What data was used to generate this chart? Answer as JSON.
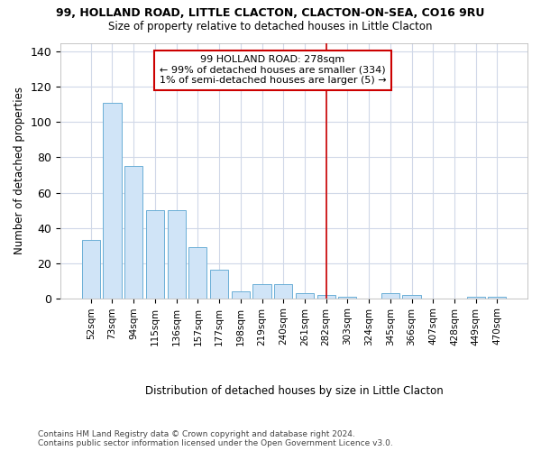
{
  "title1": "99, HOLLAND ROAD, LITTLE CLACTON, CLACTON-ON-SEA, CO16 9RU",
  "title2": "Size of property relative to detached houses in Little Clacton",
  "xlabel": "Distribution of detached houses by size in Little Clacton",
  "ylabel": "Number of detached properties",
  "categories": [
    "52sqm",
    "73sqm",
    "94sqm",
    "115sqm",
    "136sqm",
    "157sqm",
    "177sqm",
    "198sqm",
    "219sqm",
    "240sqm",
    "261sqm",
    "282sqm",
    "303sqm",
    "324sqm",
    "345sqm",
    "366sqm",
    "407sqm",
    "428sqm",
    "449sqm",
    "470sqm"
  ],
  "values": [
    33,
    111,
    75,
    50,
    50,
    29,
    16,
    4,
    8,
    8,
    3,
    2,
    1,
    0,
    3,
    2,
    0,
    0,
    1,
    1
  ],
  "bar_color": "#d0e4f7",
  "bar_edge_color": "#6baed6",
  "bg_color": "#ffffff",
  "grid_color": "#d0d8e8",
  "vline_color": "#cc0000",
  "vline_index": 11,
  "annotation_line1": "99 HOLLAND ROAD: 278sqm",
  "annotation_line2": "← 99% of detached houses are smaller (334)",
  "annotation_line3": "1% of semi-detached houses are larger (5) →",
  "annotation_box_edgecolor": "#cc0000",
  "footer1": "Contains HM Land Registry data © Crown copyright and database right 2024.",
  "footer2": "Contains public sector information licensed under the Open Government Licence v3.0.",
  "ylim": [
    0,
    145
  ],
  "yticks": [
    0,
    20,
    40,
    60,
    80,
    100,
    120,
    140
  ]
}
